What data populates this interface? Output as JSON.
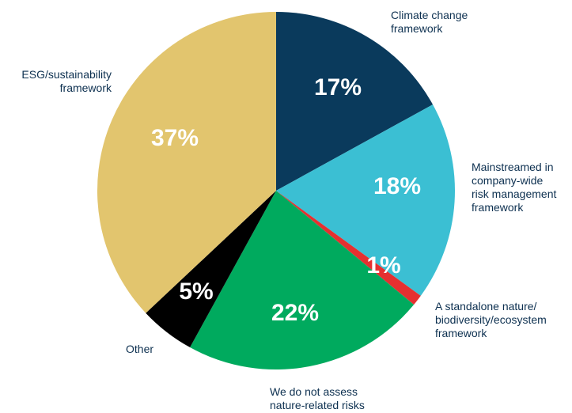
{
  "chart_data": {
    "type": "pie",
    "slices": [
      {
        "label": [
          "Climate change",
          "framework"
        ],
        "value": 17,
        "value_label": "17%",
        "color": "#0a3a5c"
      },
      {
        "label": [
          "Mainstreamed in",
          "company-wide",
          "risk management",
          "framework"
        ],
        "value": 18,
        "value_label": "18%",
        "color": "#3bbfd3"
      },
      {
        "label": [
          "A standalone nature/",
          "biodiversity/ecosystem",
          "framework"
        ],
        "value": 1,
        "value_label": "1%",
        "color": "#e53030"
      },
      {
        "label": [
          "We do not assess",
          "nature-related risks"
        ],
        "value": 22,
        "value_label": "22%",
        "color": "#00aa5e"
      },
      {
        "label": [
          "Other"
        ],
        "value": 5,
        "value_label": "5%",
        "color": "#000000"
      },
      {
        "label": [
          "ESG/sustainability",
          "framework"
        ],
        "value": 37,
        "value_label": "37%",
        "color": "#e2c56e"
      }
    ]
  }
}
